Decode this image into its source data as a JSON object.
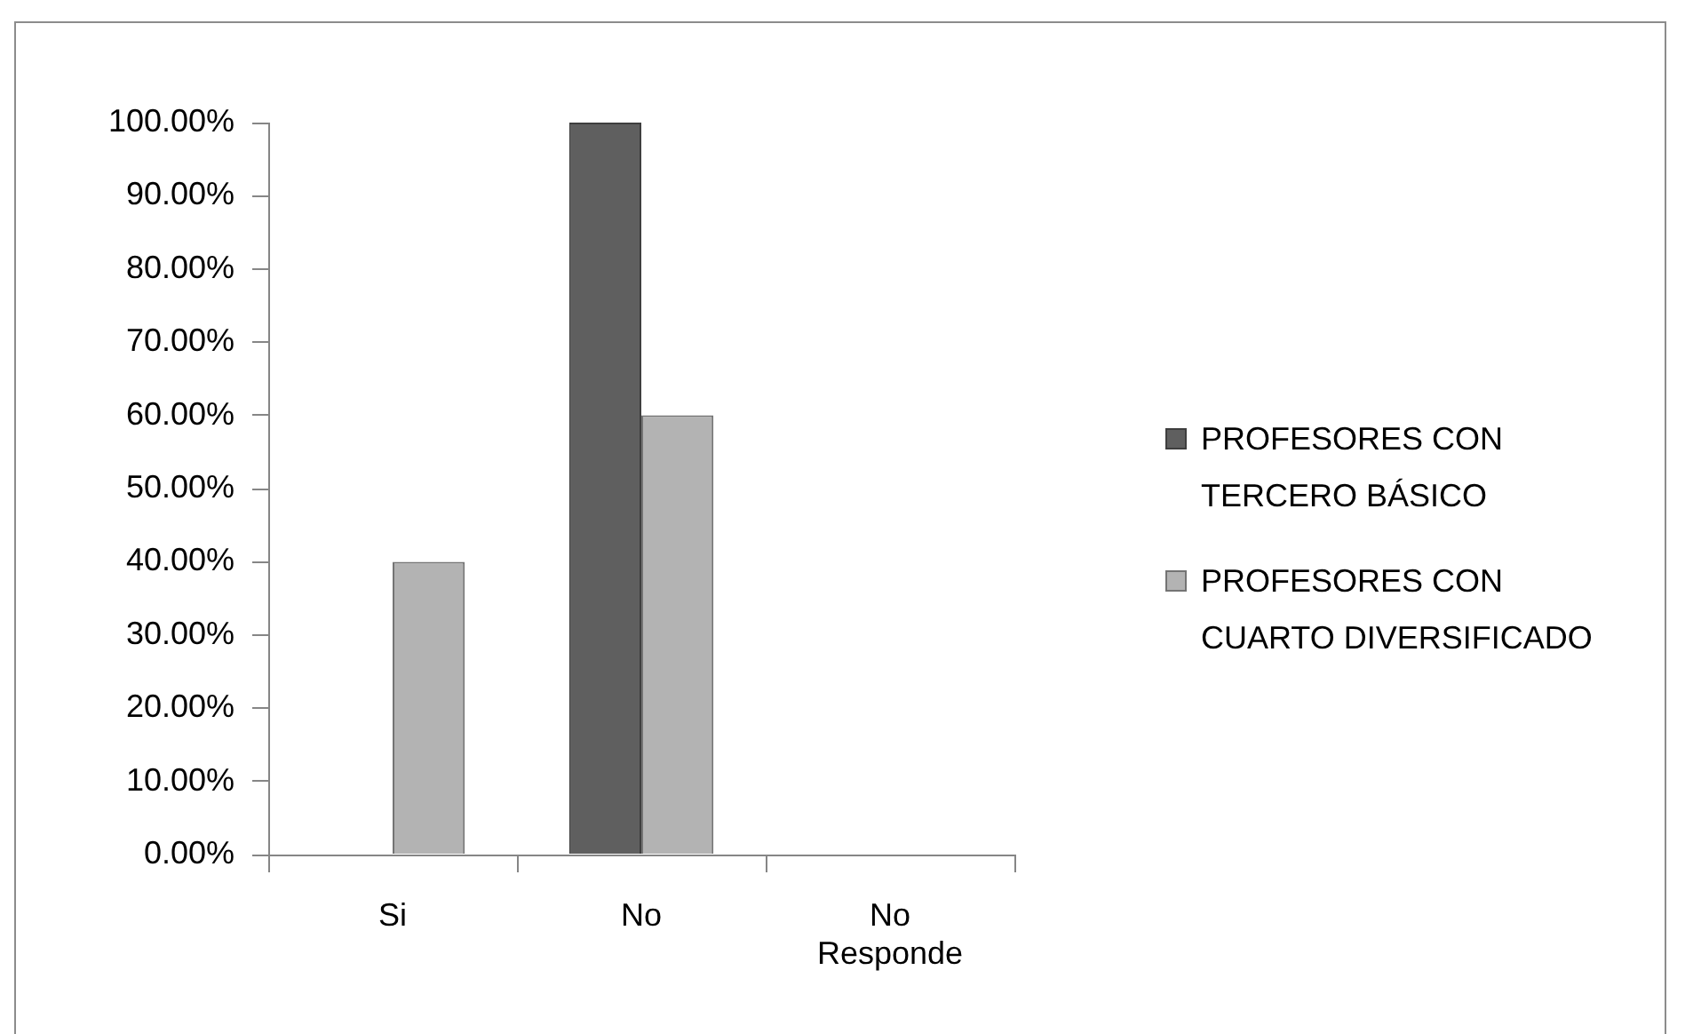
{
  "chart_data": {
    "type": "bar",
    "categories": [
      "Si",
      "No",
      "No Responde"
    ],
    "series": [
      {
        "name": "PROFESORES CON TERCERO BÁSICO",
        "color": "#5f5f5f",
        "values": [
          0,
          100,
          0
        ]
      },
      {
        "name": "PROFESORES CON CUARTO DIVERSIFICADO",
        "color": "#b3b3b3",
        "values": [
          40,
          60,
          0
        ]
      }
    ],
    "ylim": [
      0,
      100
    ],
    "yticks": [
      {
        "value": 0,
        "label": "0.00%"
      },
      {
        "value": 10,
        "label": "10.00%"
      },
      {
        "value": 20,
        "label": "20.00%"
      },
      {
        "value": 30,
        "label": "30.00%"
      },
      {
        "value": 40,
        "label": "40.00%"
      },
      {
        "value": 50,
        "label": "50.00%"
      },
      {
        "value": 60,
        "label": "60.00%"
      },
      {
        "value": 70,
        "label": "70.00%"
      },
      {
        "value": 80,
        "label": "80.00%"
      },
      {
        "value": 90,
        "label": "90.00%"
      },
      {
        "value": 100,
        "label": "100.00%"
      }
    ],
    "grid": false,
    "legend": "right"
  }
}
